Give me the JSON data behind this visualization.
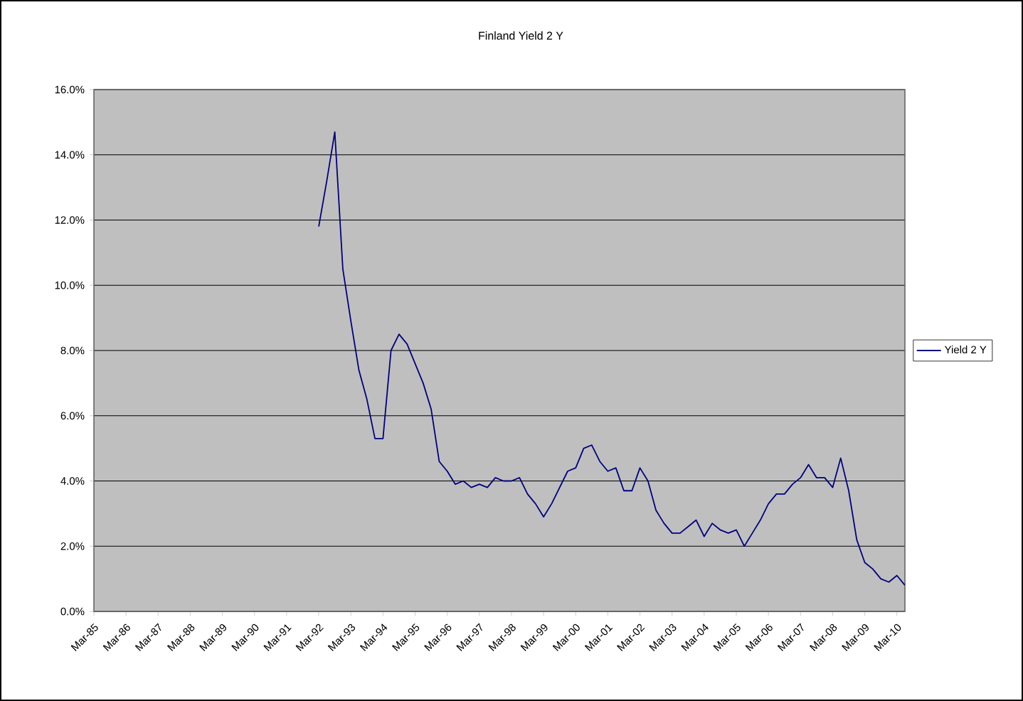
{
  "chart_data": {
    "type": "line",
    "title": "Finland Yield 2 Y",
    "categories": [
      "Mar-85",
      null,
      null,
      null,
      "Mar-86",
      null,
      null,
      null,
      "Mar-87",
      null,
      null,
      null,
      "Mar-88",
      null,
      null,
      null,
      "Mar-89",
      null,
      null,
      null,
      "Mar-90",
      null,
      null,
      null,
      "Mar-91",
      null,
      null,
      null,
      "Mar-92",
      null,
      null,
      null,
      "Mar-93",
      null,
      null,
      null,
      "Mar-94",
      null,
      null,
      null,
      "Mar-95",
      null,
      null,
      null,
      "Mar-96",
      null,
      null,
      null,
      "Mar-97",
      null,
      null,
      null,
      "Mar-98",
      null,
      null,
      null,
      "Mar-99",
      null,
      null,
      null,
      "Mar-00",
      null,
      null,
      null,
      "Mar-01",
      null,
      null,
      null,
      "Mar-02",
      null,
      null,
      null,
      "Mar-03",
      null,
      null,
      null,
      "Mar-04",
      null,
      null,
      null,
      "Mar-05",
      null,
      null,
      null,
      "Mar-06",
      null,
      null,
      null,
      "Mar-07",
      null,
      null,
      null,
      "Mar-08",
      null,
      null,
      null,
      "Mar-09",
      null,
      null,
      null,
      "Mar-10",
      null
    ],
    "series": [
      {
        "name": "Yield 2 Y",
        "color": "#000080",
        "values": [
          null,
          null,
          null,
          null,
          null,
          null,
          null,
          null,
          null,
          null,
          null,
          null,
          null,
          null,
          null,
          null,
          null,
          null,
          null,
          null,
          null,
          null,
          null,
          null,
          null,
          null,
          null,
          null,
          11.8,
          13.2,
          14.7,
          10.5,
          8.9,
          7.4,
          6.5,
          5.3,
          5.3,
          8.0,
          8.5,
          8.2,
          7.6,
          7.0,
          6.2,
          4.6,
          4.3,
          3.9,
          4.0,
          3.8,
          3.9,
          3.8,
          4.1,
          4.0,
          4.0,
          4.1,
          3.6,
          3.3,
          2.9,
          3.3,
          3.8,
          4.3,
          4.4,
          5.0,
          5.1,
          4.6,
          4.3,
          4.4,
          3.7,
          3.7,
          4.4,
          4.0,
          3.1,
          2.7,
          2.4,
          2.4,
          2.6,
          2.8,
          2.3,
          2.7,
          2.5,
          2.4,
          2.5,
          2.0,
          2.4,
          2.8,
          3.3,
          3.6,
          3.6,
          3.9,
          4.1,
          4.5,
          4.1,
          4.1,
          3.8,
          4.7,
          3.7,
          2.2,
          1.5,
          1.3,
          1.0,
          0.9,
          1.1,
          0.8
        ]
      }
    ],
    "ylim": [
      0,
      16
    ],
    "yticks": [
      {
        "value": 0,
        "label": "0.0%"
      },
      {
        "value": 2,
        "label": "2.0%"
      },
      {
        "value": 4,
        "label": "4.0%"
      },
      {
        "value": 6,
        "label": "6.0%"
      },
      {
        "value": 8,
        "label": "8.0%"
      },
      {
        "value": 10,
        "label": "10.0%"
      },
      {
        "value": 12,
        "label": "12.0%"
      },
      {
        "value": 14,
        "label": "14.0%"
      },
      {
        "value": 16,
        "label": "16.0%"
      }
    ],
    "grid": "y",
    "legend": "right",
    "marker": "none",
    "line_style": "solid"
  }
}
